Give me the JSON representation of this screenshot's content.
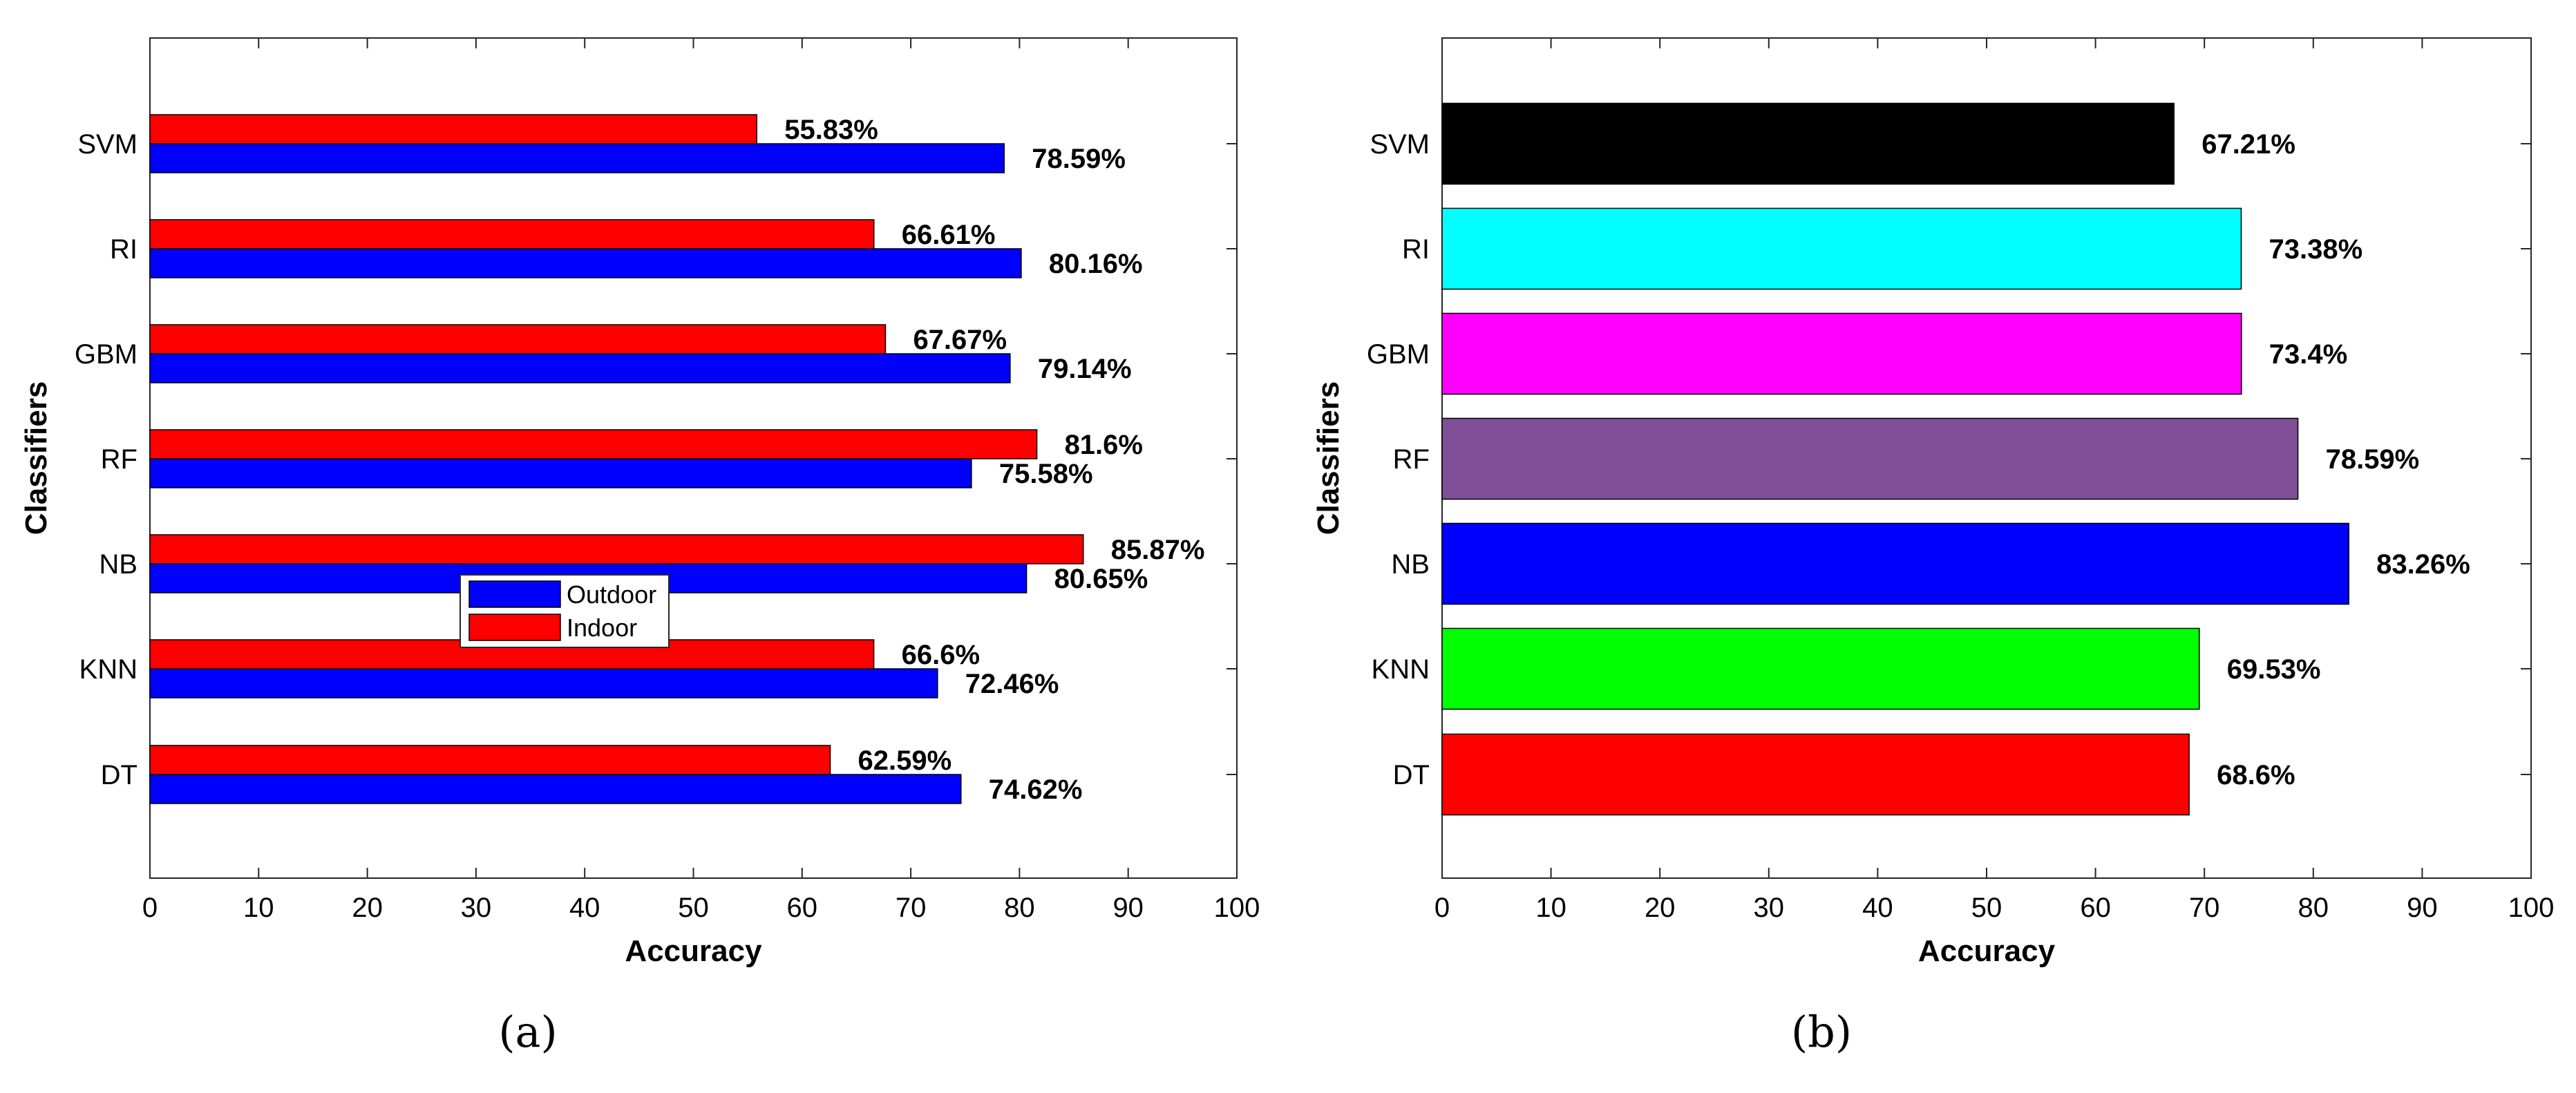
{
  "chart_data": [
    {
      "type": "bar",
      "orientation": "horizontal",
      "caption": "(a)",
      "categories": [
        "DT",
        "KNN",
        "NB",
        "RF",
        "GBM",
        "RI",
        "SVM"
      ],
      "series": [
        {
          "name": "Outdoor",
          "color": "#0000ff",
          "values": [
            74.62,
            72.46,
            80.65,
            75.58,
            79.14,
            80.16,
            78.59
          ],
          "labels": [
            "74.62%",
            "72.46%",
            "80.65%",
            "75.58%",
            "79.14%",
            "80.16%",
            "78.59%"
          ]
        },
        {
          "name": "Indoor",
          "color": "#ff0000",
          "values": [
            62.59,
            66.6,
            85.87,
            81.6,
            67.67,
            66.61,
            55.83
          ],
          "labels": [
            "62.59%",
            "66.6%",
            "85.87%",
            "81.6%",
            "67.67%",
            "66.61%",
            "55.83%"
          ]
        }
      ],
      "xlabel": "Accuracy",
      "ylabel": "Classifiers",
      "xlim": [
        0,
        100
      ],
      "xticks": [
        "0",
        "10",
        "20",
        "30",
        "40",
        "50",
        "60",
        "70",
        "80",
        "90",
        "100"
      ],
      "legend": {
        "position": "center",
        "entries": [
          "Outdoor",
          "Indoor"
        ]
      }
    },
    {
      "type": "bar",
      "orientation": "horizontal",
      "caption": "(b)",
      "categories": [
        "DT",
        "KNN",
        "NB",
        "RF",
        "GBM",
        "RI",
        "SVM"
      ],
      "values": [
        68.6,
        69.53,
        83.26,
        78.59,
        73.4,
        73.38,
        67.21
      ],
      "labels": [
        "68.6%",
        "69.53%",
        "83.26%",
        "78.59%",
        "73.4%",
        "73.38%",
        "67.21%"
      ],
      "colors": [
        "#ff0000",
        "#00ff00",
        "#0000ff",
        "#7e4f96",
        "#ff00ff",
        "#00ffff",
        "#000000"
      ],
      "xlabel": "Accuracy",
      "ylabel": "Classifiers",
      "xlim": [
        0,
        100
      ],
      "xticks": [
        "0",
        "10",
        "20",
        "30",
        "40",
        "50",
        "60",
        "70",
        "80",
        "90",
        "100"
      ]
    }
  ]
}
